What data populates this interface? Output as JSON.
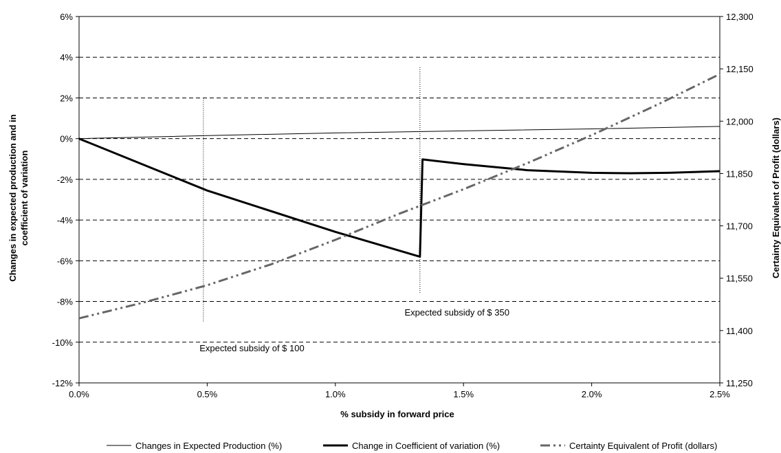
{
  "chart_data": {
    "type": "line",
    "xlabel": "% subsidy in forward price",
    "ylabel": "Changes in expected production and in coefficient of variation",
    "y2label": "Certainty Equivalent of Profit (dollars)",
    "xlim": [
      0,
      0.025
    ],
    "ylim": [
      -0.12,
      0.06
    ],
    "y2lim": [
      11250,
      12300
    ],
    "x_ticks": [
      0,
      0.005,
      0.01,
      0.015,
      0.02,
      0.025
    ],
    "x_tick_labels": [
      "0.0%",
      "0.5%",
      "1.0%",
      "1.5%",
      "2.0%",
      "2.5%"
    ],
    "y_ticks": [
      0.06,
      0.04,
      0.02,
      0,
      -0.02,
      -0.04,
      -0.06,
      -0.08,
      -0.1,
      -0.12
    ],
    "y_tick_labels": [
      "6%",
      "4%",
      "2%",
      "0%",
      "-2%",
      "-4%",
      "-6%",
      "-8%",
      "-10%",
      "-12%"
    ],
    "y2_ticks": [
      12300,
      12150,
      12000,
      11850,
      11700,
      11550,
      11400,
      11250
    ],
    "y2_tick_labels": [
      "12,300",
      "12,150",
      "12,000",
      "11,850",
      "11,700",
      "11,550",
      "11,400",
      "11,250"
    ],
    "grid": "horizontal dashed",
    "legend_position": "bottom",
    "series": [
      {
        "name": "Changes in Expected Production (%)",
        "axis": "left",
        "style": "thin-solid",
        "color": "#000000",
        "x": [
          0,
          0.005,
          0.01,
          0.015,
          0.02,
          0.025
        ],
        "y": [
          0,
          0.0015,
          0.0028,
          0.0038,
          0.0048,
          0.006
        ]
      },
      {
        "name": "Change in Coefficient of variation (%)",
        "axis": "left",
        "style": "thick-solid",
        "color": "#000000",
        "x": [
          0,
          0.005,
          0.01,
          0.0133,
          0.0133,
          0.0134,
          0.015,
          0.0175,
          0.02,
          0.0215,
          0.023,
          0.025
        ],
        "y": [
          0,
          -0.0255,
          -0.0458,
          -0.058,
          -0.058,
          -0.0102,
          -0.0125,
          -0.0155,
          -0.0168,
          -0.017,
          -0.0168,
          -0.016
        ]
      },
      {
        "name": "Certainty Equivalent of Profit (dollars)",
        "axis": "right",
        "style": "dash-dot",
        "color": "#666666",
        "x": [
          0,
          0.0025,
          0.005,
          0.0075,
          0.01,
          0.0125,
          0.015,
          0.0175,
          0.02,
          0.0225,
          0.025
        ],
        "y": [
          11435,
          11480,
          11530,
          11590,
          11660,
          11735,
          11805,
          11880,
          11960,
          12045,
          12135
        ]
      }
    ],
    "annotations": [
      {
        "text": "Expected subsidy of $ 100",
        "x": 0.00485,
        "y_top": 0.02,
        "y_bottom": -0.09,
        "label_y": -0.1027,
        "label_x": 0.0047
      },
      {
        "text": "Expected subsidy of $ 350",
        "x": 0.0133,
        "y_top": 0.035,
        "y_bottom": -0.076,
        "label_y": -0.0853,
        "label_x": 0.0127
      }
    ]
  }
}
